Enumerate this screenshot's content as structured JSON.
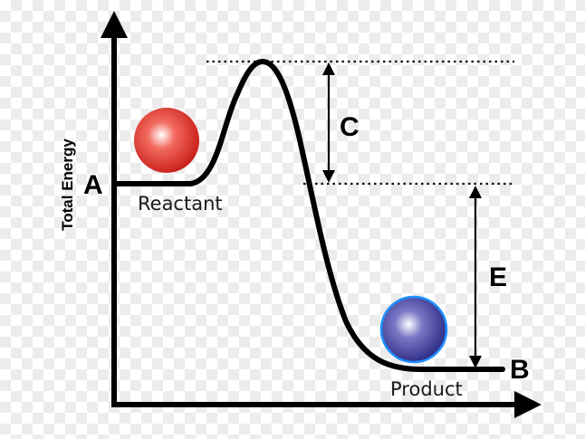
{
  "axis": {
    "y_label": "Total Energy"
  },
  "points": {
    "start": "A",
    "end": "B"
  },
  "gaps": {
    "activation": "C",
    "released": "E"
  },
  "states": {
    "reactant": "Reactant",
    "product": "Product"
  },
  "colors": {
    "curve": "#000000",
    "reactant_ball": "#e8362c",
    "product_ball": "#4a4aa8"
  }
}
